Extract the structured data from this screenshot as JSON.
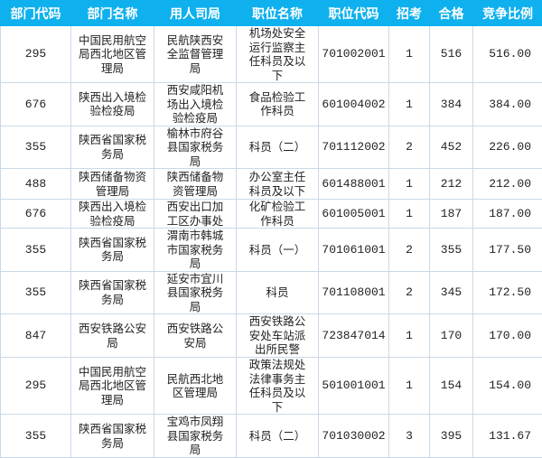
{
  "headers": [
    "部门代码",
    "部门名称",
    "用人司局",
    "职位名称",
    "职位代码",
    "招考",
    "合格",
    "竞争比例"
  ],
  "rows": [
    [
      "295",
      "中国民用航空局西北地区管理局",
      "民航陕西安全监督管理局",
      "机场处安全运行监察主任科员及以下",
      "701002001",
      "1",
      "516",
      "516.00"
    ],
    [
      "676",
      "陕西出入境检验检疫局",
      "西安咸阳机场出入境检验检疫局",
      "食品检验工作科员",
      "601004002",
      "1",
      "384",
      "384.00"
    ],
    [
      "355",
      "陕西省国家税务局",
      "榆林市府谷县国家税务局",
      "科员（二）",
      "701112002",
      "2",
      "452",
      "226.00"
    ],
    [
      "488",
      "陕西储备物资管理局",
      "陕西储备物资管理局",
      "办公室主任科员及以下",
      "601488001",
      "1",
      "212",
      "212.00"
    ],
    [
      "676",
      "陕西出入境检验检疫局",
      "西安出口加工区办事处",
      "化矿检验工作科员",
      "601005001",
      "1",
      "187",
      "187.00"
    ],
    [
      "355",
      "陕西省国家税务局",
      "渭南市韩城市国家税务局",
      "科员（一）",
      "701061001",
      "2",
      "355",
      "177.50"
    ],
    [
      "355",
      "陕西省国家税务局",
      "延安市宜川县国家税务局",
      "科员",
      "701108001",
      "2",
      "345",
      "172.50"
    ],
    [
      "847",
      "西安铁路公安局",
      "西安铁路公安局",
      "西安铁路公安处车站派出所民警",
      "723847014",
      "1",
      "170",
      "170.00"
    ],
    [
      "295",
      "中国民用航空局西北地区管理局",
      "民航西北地区管理局",
      "政策法规处法律事务主任科员及以下",
      "501001001",
      "1",
      "154",
      "154.00"
    ],
    [
      "355",
      "陕西省国家税务局",
      "宝鸡市凤翔县国家税务局",
      "科员（二）",
      "701030002",
      "3",
      "395",
      "131.67"
    ]
  ]
}
